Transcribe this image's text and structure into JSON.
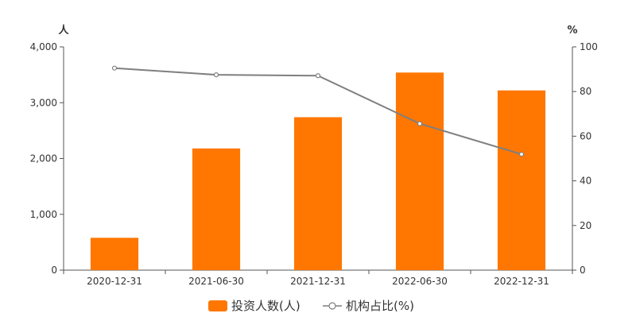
{
  "chart_data": {
    "type": "bar",
    "categories": [
      "2020-12-31",
      "2021-06-30",
      "2021-12-31",
      "2022-06-30",
      "2022-12-31"
    ],
    "series": [
      {
        "name": "投资人数(人)",
        "type": "bar",
        "axis": "left",
        "color": "#ff7700",
        "values": [
          580,
          2180,
          2740,
          3540,
          3220
        ]
      },
      {
        "name": "机构占比(%)",
        "type": "line",
        "axis": "right",
        "color": "#7f7f7f",
        "values": [
          90.5,
          87.5,
          87.1,
          65.6,
          51.9
        ]
      }
    ],
    "y_left": {
      "unit": "人",
      "range": [
        0,
        4000
      ],
      "ticks": [
        0,
        1000,
        2000,
        3000,
        4000
      ],
      "tick_labels": [
        "0",
        "1,000",
        "2,000",
        "3,000",
        "4,000"
      ]
    },
    "y_right": {
      "unit": "%",
      "range": [
        0,
        100
      ],
      "ticks": [
        0,
        20,
        40,
        60,
        80,
        100
      ],
      "tick_labels": [
        "0",
        "20",
        "40",
        "60",
        "80",
        "100"
      ]
    },
    "grid": false,
    "legend_position": "bottom-center"
  }
}
